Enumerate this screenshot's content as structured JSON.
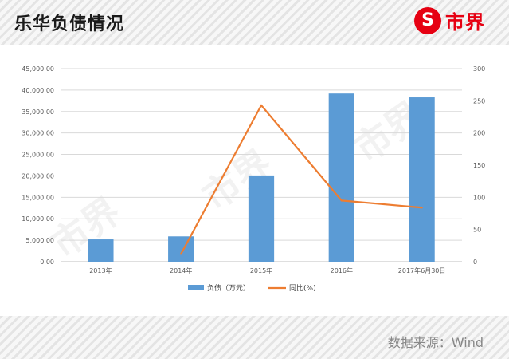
{
  "header": {
    "title": "乐华负债情况",
    "brand_name": "市界",
    "brand_icon": "s-circle-logo-icon"
  },
  "footer": {
    "source": "数据来源：Wind"
  },
  "watermark": "市界",
  "colors": {
    "bar": "#5b9bd5",
    "line": "#ed7d31",
    "brand": "#e60012"
  },
  "chart_data": {
    "type": "bar",
    "categories": [
      "2013年",
      "2014年",
      "2015年",
      "2016年",
      "2017年6月30日"
    ],
    "series": [
      {
        "name": "负债（万元）",
        "type": "bar",
        "axis": "left",
        "values": [
          5200,
          5900,
          20100,
          39200,
          38300
        ]
      },
      {
        "name": "同比(%)",
        "type": "line",
        "axis": "right",
        "values": [
          null,
          12,
          243,
          95,
          84
        ]
      }
    ],
    "y_left": {
      "min": 0,
      "max": 45000,
      "step": 5000,
      "tick_labels": [
        "0.00",
        "5,000.00",
        "10,000.00",
        "15,000.00",
        "20,000.00",
        "25,000.00",
        "30,000.00",
        "35,000.00",
        "40,000.00",
        "45,000.00"
      ]
    },
    "y_right": {
      "min": 0,
      "max": 300,
      "step": 50,
      "tick_labels": [
        "0",
        "50",
        "100",
        "150",
        "200",
        "250",
        "300"
      ]
    },
    "grid": true,
    "legend_position": "bottom"
  }
}
